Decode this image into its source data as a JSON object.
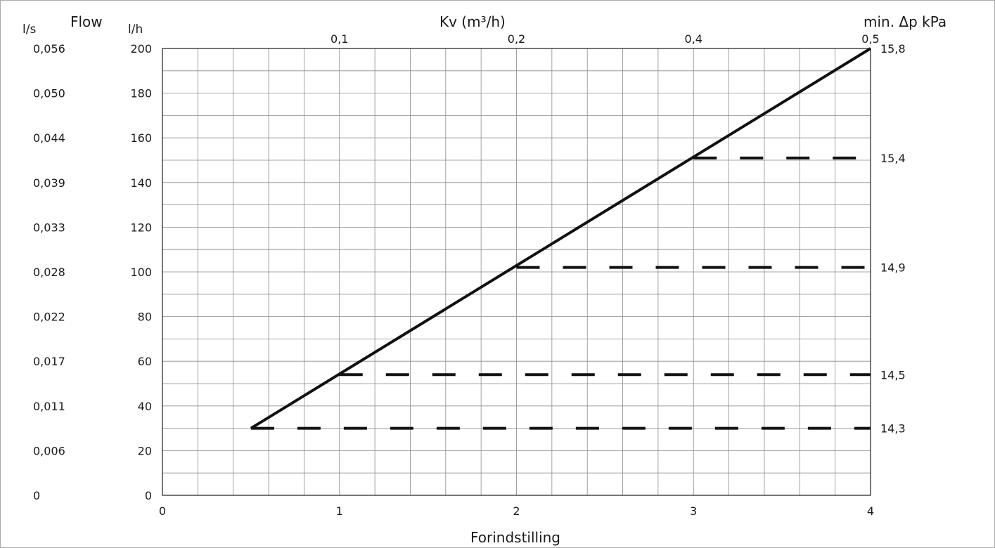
{
  "chart_data": {
    "type": "line",
    "title": "",
    "xlabel": "Forindstilling",
    "ylabel_primary": "Flow",
    "ylabel_primary_unit": "l/h",
    "ylabel_secondary_unit": "l/s",
    "top_axis_label": "Kv (m³/h)",
    "right_axis_label": "min. Δp kPa",
    "xlim": [
      0,
      4
    ],
    "ylim": [
      0,
      200
    ],
    "grid": true,
    "x_ticks": [
      {
        "value": 0,
        "label": "0"
      },
      {
        "value": 1,
        "label": "1"
      },
      {
        "value": 2,
        "label": "2"
      },
      {
        "value": 3,
        "label": "3"
      },
      {
        "value": 4,
        "label": "4"
      }
    ],
    "y_ticks_lh": [
      {
        "value": 0,
        "label": "0"
      },
      {
        "value": 20,
        "label": "20"
      },
      {
        "value": 40,
        "label": "40"
      },
      {
        "value": 60,
        "label": "60"
      },
      {
        "value": 80,
        "label": "80"
      },
      {
        "value": 100,
        "label": "100"
      },
      {
        "value": 120,
        "label": "120"
      },
      {
        "value": 140,
        "label": "140"
      },
      {
        "value": 160,
        "label": "160"
      },
      {
        "value": 180,
        "label": "180"
      },
      {
        "value": 200,
        "label": "200"
      }
    ],
    "y_ticks_ls": [
      {
        "value": 0,
        "label": "0"
      },
      {
        "value": 20,
        "label": "0,006"
      },
      {
        "value": 40,
        "label": "0,011"
      },
      {
        "value": 60,
        "label": "0,017"
      },
      {
        "value": 80,
        "label": "0,022"
      },
      {
        "value": 100,
        "label": "0,028"
      },
      {
        "value": 120,
        "label": "0,033"
      },
      {
        "value": 140,
        "label": "0,039"
      },
      {
        "value": 160,
        "label": "0,044"
      },
      {
        "value": 180,
        "label": "0,050"
      },
      {
        "value": 200,
        "label": "0,056"
      }
    ],
    "kv_ticks": [
      {
        "x": 1,
        "label": "0,1"
      },
      {
        "x": 2,
        "label": "0,2"
      },
      {
        "x": 3,
        "label": "0,4"
      },
      {
        "x": 4,
        "label": "0,5"
      }
    ],
    "dp_ticks": [
      {
        "y": 200,
        "label": "15,8"
      },
      {
        "y": 151,
        "label": "15,4"
      },
      {
        "y": 102,
        "label": "14,9"
      },
      {
        "y": 54,
        "label": "14,5"
      },
      {
        "y": 30,
        "label": "14,3"
      }
    ],
    "series": [
      {
        "style": "solid",
        "x": [
          0.5,
          4
        ],
        "y": [
          30,
          200
        ]
      },
      {
        "style": "dashed",
        "segments": [
          {
            "x": [
              0.5,
              4
            ],
            "y": [
              30,
              30
            ]
          },
          {
            "x": [
              1,
              4
            ],
            "y": [
              54,
              54
            ]
          },
          {
            "x": [
              2,
              4
            ],
            "y": [
              102,
              102
            ]
          },
          {
            "x": [
              3,
              4
            ],
            "y": [
              151,
              151
            ]
          }
        ]
      }
    ]
  }
}
